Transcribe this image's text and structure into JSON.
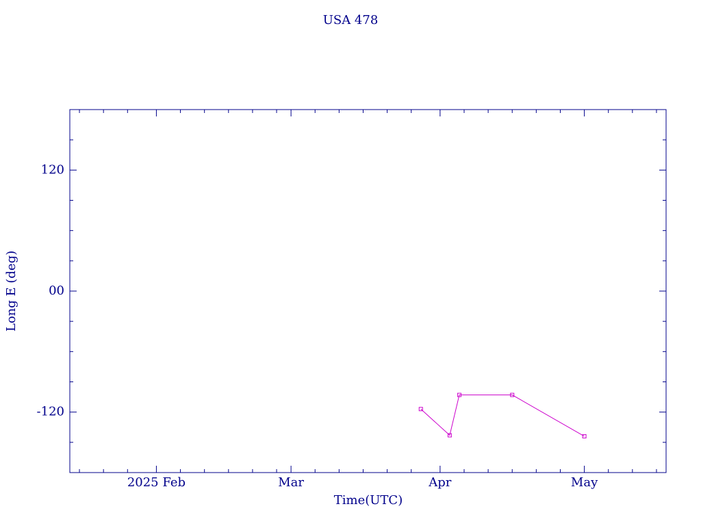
{
  "chart_data": {
    "type": "line",
    "title": "USA 478",
    "xlabel": "Time(UTC)",
    "ylabel": "Long E (deg)",
    "x": [
      "2025-03-28",
      "2025-04-03",
      "2025-04-05",
      "2025-04-16",
      "2025-05-01"
    ],
    "values": [
      -117,
      -143,
      -103,
      -103,
      -144
    ],
    "color": "#cc00cc",
    "axis_color": "#00008b",
    "xlim": [
      "2025-01-14",
      "2025-05-18"
    ],
    "xticks": [
      {
        "value": "2025-02-01",
        "label": "2025 Feb"
      },
      {
        "value": "2025-03-01",
        "label": "Mar"
      },
      {
        "value": "2025-04-01",
        "label": "Apr"
      },
      {
        "value": "2025-05-01",
        "label": "May"
      }
    ],
    "xminorticks": [
      "2025-01-16",
      "2025-01-21",
      "2025-01-26",
      "2025-02-06",
      "2025-02-11",
      "2025-02-16",
      "2025-02-21",
      "2025-02-26",
      "2025-03-06",
      "2025-03-11",
      "2025-03-16",
      "2025-03-21",
      "2025-03-26",
      "2025-04-06",
      "2025-04-11",
      "2025-04-16",
      "2025-04-21",
      "2025-04-26",
      "2025-05-06",
      "2025-05-11",
      "2025-05-16"
    ],
    "ylim": [
      -180,
      180
    ],
    "yticks": [
      -120,
      {
        "value": 0,
        "label": "00"
      },
      120
    ],
    "yminorticks": [
      -150,
      -90,
      -60,
      -30,
      30,
      60,
      90,
      150
    ]
  }
}
